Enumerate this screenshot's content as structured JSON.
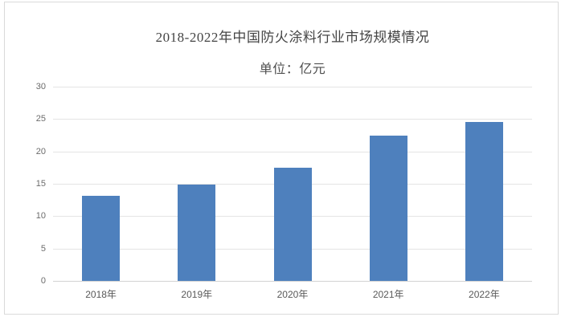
{
  "page": {
    "background_color": "#ffffff",
    "frame_border_color": "#dadada"
  },
  "chart_data": {
    "type": "bar",
    "title": "2018-2022年中国防火涂料行业市场规模情况",
    "subtitle": "单位：亿元",
    "categories": [
      "2018年",
      "2019年",
      "2020年",
      "2021年",
      "2022年"
    ],
    "values": [
      13.2,
      14.9,
      17.5,
      22.4,
      24.6
    ],
    "ylim": [
      0,
      30
    ],
    "yticks": [
      0,
      5,
      10,
      15,
      20,
      25,
      30
    ],
    "grid": true,
    "legend": false,
    "bar_color": "#4e80bd",
    "gridline_color": "#e4e4e4",
    "axis_line_color": "#d2d2d2",
    "tick_label_color": "#6b6b6b",
    "category_label_color": "#595959",
    "title_color": "#444444"
  }
}
